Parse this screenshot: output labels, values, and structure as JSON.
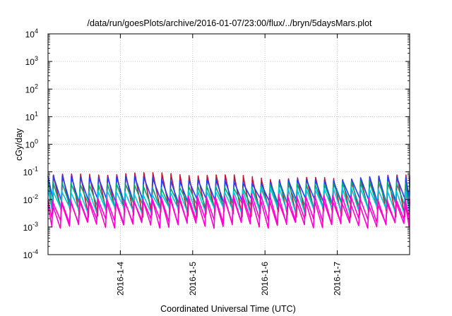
{
  "chart_data": {
    "type": "line",
    "title": "/data/run/goesPlots/archive/2016-01-07/23:00/flux/../bryn/5daysMars.plot",
    "xlabel": "Coordinated Universal Time (UTC)",
    "ylabel": "cGy/day",
    "yscale": "log",
    "ylim": [
      0.0001,
      10000
    ],
    "y_ticks": [
      {
        "base": "10",
        "exp": "-4"
      },
      {
        "base": "10",
        "exp": "-3"
      },
      {
        "base": "10",
        "exp": "-2"
      },
      {
        "base": "10",
        "exp": "-1"
      },
      {
        "base": "10",
        "exp": "0"
      },
      {
        "base": "10",
        "exp": "1"
      },
      {
        "base": "10",
        "exp": "2"
      },
      {
        "base": "10",
        "exp": "3"
      },
      {
        "base": "10",
        "exp": "4"
      }
    ],
    "xlim": [
      "2016-01-03T00:00",
      "2016-01-08T00:00"
    ],
    "x_ticks": [
      {
        "label": "2016-1-4",
        "date": "2016-01-04T00:00"
      },
      {
        "label": "2016-1-5",
        "date": "2016-01-05T00:00"
      },
      {
        "label": "2016-1-6",
        "date": "2016-01-06T00:00"
      },
      {
        "label": "2016-1-7",
        "date": "2016-01-07T00:00"
      }
    ],
    "grid": true,
    "cycle_hours": 3,
    "series": [
      {
        "color": "#c8102e",
        "peak": 0.07,
        "trough": 0.003
      },
      {
        "color": "#1f3fff",
        "peak": 0.055,
        "trough": 0.009
      },
      {
        "color": "#00a878",
        "peak": 0.035,
        "trough": 0.006
      },
      {
        "color": "#00c8e0",
        "peak": 0.022,
        "trough": 0.004
      },
      {
        "color": "#ff00d0",
        "peak": 0.012,
        "trough": 0.0016
      },
      {
        "color": "#ff00d0",
        "peak": 0.009,
        "trough": 0.0012
      }
    ]
  }
}
